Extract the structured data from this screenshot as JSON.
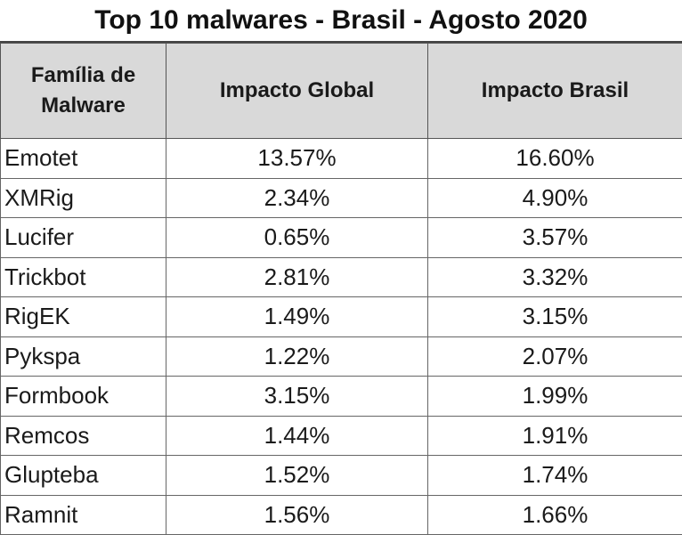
{
  "chart_data": {
    "type": "table",
    "title": "Top 10 malwares - Brasil - Agosto 2020",
    "columns": [
      "Família de Malware",
      "Impacto Global",
      "Impacto Brasil"
    ],
    "rows": [
      {
        "family": "Emotet",
        "global": "13.57%",
        "brasil": "16.60%"
      },
      {
        "family": "XMRig",
        "global": "2.34%",
        "brasil": "4.90%"
      },
      {
        "family": "Lucifer",
        "global": "0.65%",
        "brasil": "3.57%"
      },
      {
        "family": "Trickbot",
        "global": "2.81%",
        "brasil": "3.32%"
      },
      {
        "family": "RigEK",
        "global": "1.49%",
        "brasil": "3.15%"
      },
      {
        "family": "Pykspa",
        "global": "1.22%",
        "brasil": "2.07%"
      },
      {
        "family": "Formbook",
        "global": "3.15%",
        "brasil": "1.99%"
      },
      {
        "family": "Remcos",
        "global": "1.44%",
        "brasil": "1.91%"
      },
      {
        "family": "Glupteba",
        "global": "1.52%",
        "brasil": "1.74%"
      },
      {
        "family": "Ramnit",
        "global": "1.56%",
        "brasil": "1.66%"
      }
    ]
  }
}
